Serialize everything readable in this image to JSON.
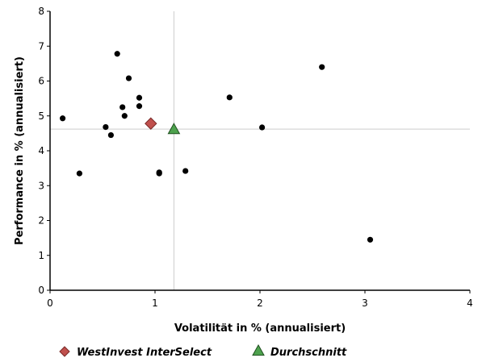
{
  "chart_data": {
    "type": "scatter",
    "title": "",
    "xlabel": "Volatilität in % (annualisiert)",
    "ylabel": "Performance in % (annualisiert)",
    "xlim": [
      0,
      4
    ],
    "ylim": [
      0,
      8
    ],
    "x_ticks": [
      "0",
      "1",
      "2",
      "3",
      "4"
    ],
    "y_ticks": [
      "0",
      "1",
      "2",
      "3",
      "4",
      "5",
      "6",
      "7",
      "8"
    ],
    "grid": false,
    "reference_lines": {
      "x": 1.18,
      "y": 4.62,
      "color": "#cccccc"
    },
    "series": [
      {
        "marker": "circle",
        "color": "#000000",
        "points": [
          {
            "x": 0.12,
            "y": 4.93
          },
          {
            "x": 0.28,
            "y": 3.35
          },
          {
            "x": 0.53,
            "y": 4.68
          },
          {
            "x": 0.58,
            "y": 4.45
          },
          {
            "x": 0.64,
            "y": 6.78
          },
          {
            "x": 0.69,
            "y": 5.25
          },
          {
            "x": 0.71,
            "y": 5.0
          },
          {
            "x": 0.75,
            "y": 6.08
          },
          {
            "x": 0.85,
            "y": 5.52
          },
          {
            "x": 0.85,
            "y": 5.28
          },
          {
            "x": 1.04,
            "y": 3.38
          },
          {
            "x": 1.04,
            "y": 3.35
          },
          {
            "x": 1.29,
            "y": 3.42
          },
          {
            "x": 1.71,
            "y": 5.53
          },
          {
            "x": 2.02,
            "y": 4.67
          },
          {
            "x": 2.59,
            "y": 6.4
          },
          {
            "x": 3.05,
            "y": 1.45
          }
        ]
      },
      {
        "name": "WestInvest InterSelect",
        "marker": "diamond",
        "color": "#c0504d",
        "points": [
          {
            "x": 0.96,
            "y": 4.78
          }
        ]
      },
      {
        "name": "Durchschnitt",
        "marker": "triangle",
        "color": "#4ea24e",
        "points": [
          {
            "x": 1.18,
            "y": 4.62
          }
        ]
      }
    ],
    "legend": {
      "placement": "bottom-left",
      "entries": [
        {
          "label": "WestInvest InterSelect",
          "marker": "diamond",
          "color": "#c0504d"
        },
        {
          "label": "Durchschnitt",
          "marker": "triangle",
          "color": "#4ea24e"
        }
      ]
    }
  }
}
